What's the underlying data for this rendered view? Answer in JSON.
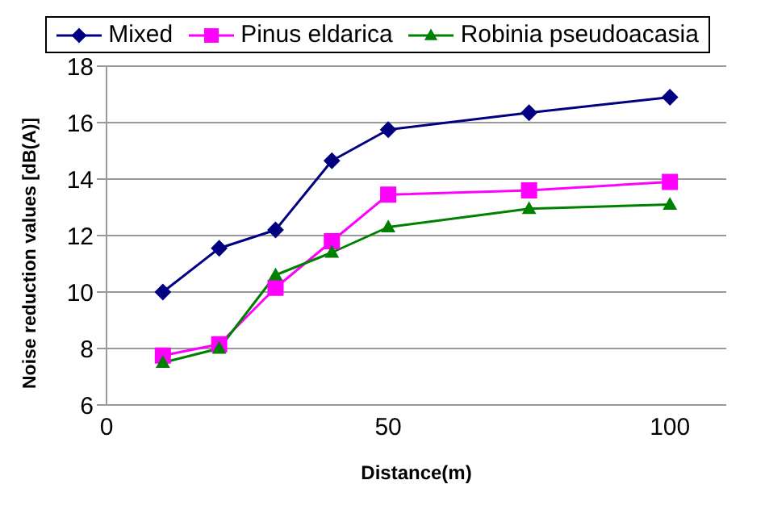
{
  "chart_data": {
    "type": "line",
    "xlabel": "Distance(m)",
    "ylabel": "Noise reduction values [dB(A)]",
    "x": [
      10,
      20,
      30,
      40,
      50,
      75,
      100
    ],
    "series": [
      {
        "name": "Mixed",
        "color": "#000080",
        "marker": "diamond",
        "values": [
          10.0,
          11.55,
          12.2,
          14.65,
          15.75,
          16.35,
          16.9
        ]
      },
      {
        "name": "Pinus eldarica",
        "color": "#ff00ff",
        "marker": "square",
        "values": [
          7.75,
          8.15,
          10.15,
          11.8,
          13.45,
          13.6,
          13.9
        ]
      },
      {
        "name": "Robinia pseudoacasia",
        "color": "#008000",
        "marker": "triangle",
        "values": [
          7.5,
          8.0,
          10.6,
          11.4,
          12.3,
          12.95,
          13.1
        ]
      }
    ],
    "xlim": [
      0,
      110
    ],
    "xticks": [
      0,
      50,
      100
    ],
    "ylim": [
      6,
      18
    ],
    "yticks": [
      6,
      8,
      10,
      12,
      14,
      16,
      18
    ],
    "grid": "y",
    "legend": "top",
    "line_style": "solid"
  }
}
